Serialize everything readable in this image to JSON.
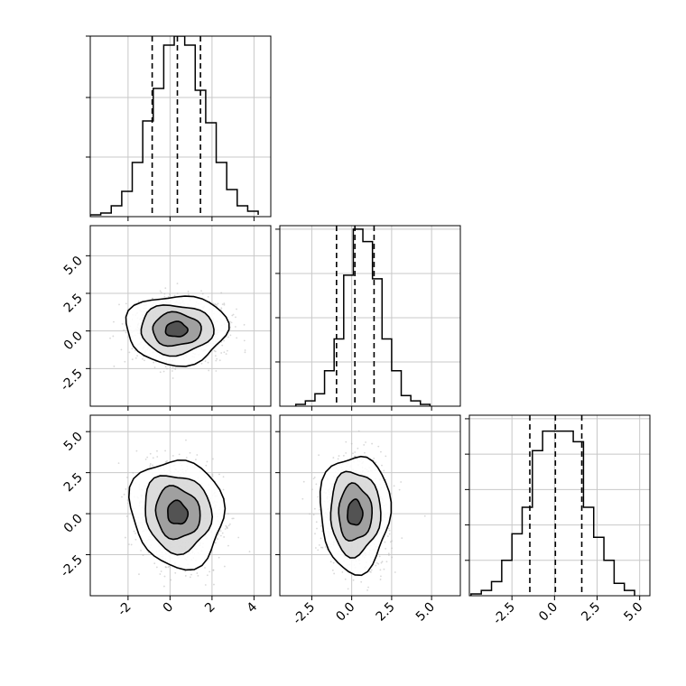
{
  "chart_data": {
    "type": "corner",
    "grid": true,
    "scatter_color": "#b8b8b8",
    "line_color": "#000000",
    "panels": [
      {
        "id": "hist-1",
        "type": "histogram",
        "xlim": [
          -3.8,
          4.8
        ],
        "ylim": [
          0,
          1.0
        ],
        "bin_edges": [
          -3.8,
          -3.3,
          -2.8,
          -2.3,
          -1.8,
          -1.3,
          -0.8,
          -0.3,
          0.2,
          0.7,
          1.2,
          1.7,
          2.2,
          2.7,
          3.2,
          3.7,
          4.2
        ],
        "counts": [
          0.01,
          0.02,
          0.06,
          0.14,
          0.3,
          0.53,
          0.71,
          0.95,
          1.0,
          0.95,
          0.7,
          0.52,
          0.3,
          0.15,
          0.06,
          0.03,
          0.01
        ],
        "quantiles": [
          -0.85,
          0.35,
          1.45
        ],
        "xticks": [
          -2,
          0,
          2,
          4
        ],
        "yticks": [
          0.33,
          0.66,
          1.0
        ],
        "show_xlabels": false
      },
      {
        "id": "hist-2",
        "type": "histogram",
        "xlim": [
          -4.5,
          6.8
        ],
        "ylim": [
          0,
          1.02
        ],
        "bin_edges": [
          -3.5,
          -2.9,
          -2.3,
          -1.7,
          -1.1,
          -0.5,
          0.1,
          0.7,
          1.3,
          1.9,
          2.5,
          3.1,
          3.7,
          4.3,
          4.9
        ],
        "counts": [
          0.01,
          0.03,
          0.07,
          0.2,
          0.38,
          0.74,
          1.0,
          0.93,
          0.72,
          0.38,
          0.2,
          0.06,
          0.03,
          0.01
        ],
        "quantiles": [
          -0.95,
          0.2,
          1.4
        ],
        "xticks": [
          -2.5,
          0.0,
          2.5,
          5.0
        ],
        "yticks": [
          0.25,
          0.5,
          0.75,
          1.0
        ],
        "show_xlabels": false
      },
      {
        "id": "hist-3",
        "type": "histogram",
        "xlim": [
          -5.0,
          5.6
        ],
        "ylim": [
          0,
          1.02
        ],
        "bin_edges": [
          -4.9,
          -4.3,
          -3.7,
          -3.1,
          -2.5,
          -1.9,
          -1.3,
          -0.7,
          -0.1,
          0.5,
          1.1,
          1.7,
          2.3,
          2.9,
          3.5,
          4.1,
          4.7
        ],
        "counts": [
          0.01,
          0.03,
          0.08,
          0.2,
          0.35,
          0.5,
          0.82,
          0.93,
          0.93,
          0.93,
          0.87,
          0.5,
          0.33,
          0.2,
          0.07,
          0.03
        ],
        "quantiles": [
          -1.45,
          0.05,
          1.6
        ],
        "xticks": [
          -2.5,
          0.0,
          2.5,
          5.0
        ],
        "xticklabels": [
          "-2.5",
          "0.0",
          "2.5",
          "5.0"
        ],
        "yticks": [
          0.2,
          0.4,
          0.6,
          0.8,
          1.0
        ],
        "show_xlabels": true
      },
      {
        "id": "scatter-2-1",
        "type": "density",
        "xlim": [
          -3.8,
          4.8
        ],
        "ylim": [
          -5.0,
          7.0
        ],
        "center": [
          0.3,
          0.1
        ],
        "spread": [
          1.05,
          1.0
        ],
        "rotation_deg": 0,
        "contour_radii": [
          2.3,
          1.65,
          1.1,
          0.5
        ],
        "xticks": [
          -2,
          0,
          2,
          4
        ],
        "yticks": [
          -2.5,
          0.0,
          2.5,
          5.0
        ],
        "yticklabels": [
          "-2.5",
          "0.0",
          "2.5",
          "5.0"
        ],
        "show_xlabels": false,
        "show_ylabels": true
      },
      {
        "id": "scatter-3-1",
        "type": "density",
        "xlim": [
          -3.8,
          4.8
        ],
        "ylim": [
          -5.0,
          6.0
        ],
        "center": [
          0.35,
          0.05
        ],
        "spread": [
          1.0,
          1.5
        ],
        "rotation_deg": 18,
        "contour_radii": [
          2.3,
          1.65,
          1.1,
          0.5
        ],
        "xticks": [
          -2,
          0,
          2,
          4
        ],
        "xticklabels": [
          "-2",
          "0",
          "2",
          "4"
        ],
        "yticks": [
          -2.5,
          0.0,
          2.5,
          5.0
        ],
        "yticklabels": [
          "-2.5",
          "0.0",
          "2.5",
          "5.0"
        ],
        "show_xlabels": true,
        "show_ylabels": true
      },
      {
        "id": "scatter-3-2",
        "type": "density",
        "xlim": [
          -4.5,
          6.8
        ],
        "ylim": [
          -5.0,
          6.0
        ],
        "center": [
          0.2,
          0.05
        ],
        "spread": [
          0.95,
          1.55
        ],
        "rotation_deg": 0,
        "contour_radii": [
          2.3,
          1.65,
          1.1,
          0.5
        ],
        "xticks": [
          -2.5,
          0.0,
          2.5,
          5.0
        ],
        "xticklabels": [
          "-2.5",
          "0.0",
          "2.5",
          "5.0"
        ],
        "yticks": [
          -2.5,
          0.0,
          2.5,
          5.0
        ],
        "show_xlabels": true,
        "show_ylabels": false
      }
    ]
  }
}
